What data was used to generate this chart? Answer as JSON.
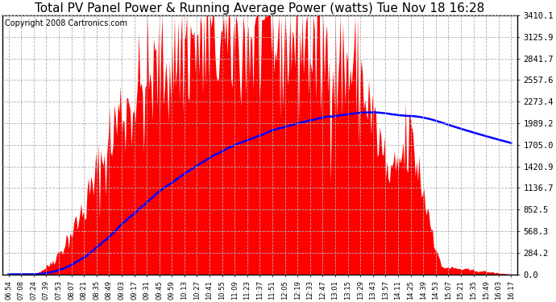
{
  "title": "Total PV Panel Power & Running Average Power (watts) Tue Nov 18 16:28",
  "copyright": "Copyright 2008 Cartronics.com",
  "ytick_labels": [
    "0.0",
    "284.2",
    "568.3",
    "852.5",
    "1136.7",
    "1420.9",
    "1705.0",
    "1989.2",
    "2273.4",
    "2557.6",
    "2841.7",
    "3125.9",
    "3410.1"
  ],
  "ytick_values": [
    0.0,
    284.2,
    568.3,
    852.5,
    1136.7,
    1420.9,
    1705.0,
    1989.2,
    2273.4,
    2557.6,
    2841.7,
    3125.9,
    3410.1
  ],
  "ymax": 3410.1,
  "background_color": "#ffffff",
  "fill_color": "#ff0000",
  "line_color": "#0000ff",
  "grid_color": "#b0b0b0",
  "title_fontsize": 11,
  "copyright_fontsize": 7
}
